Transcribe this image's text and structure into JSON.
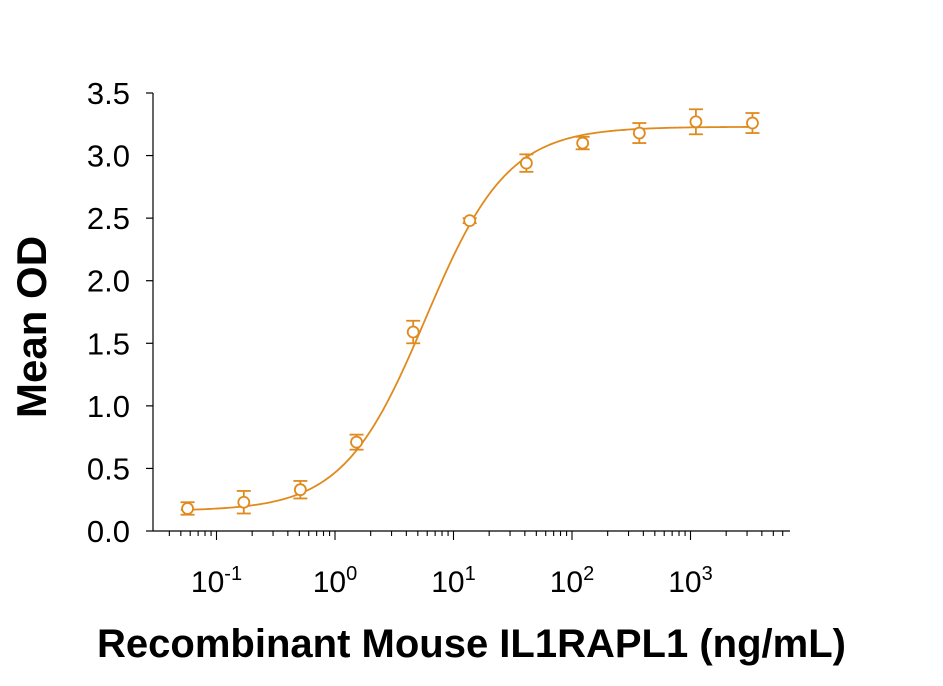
{
  "chart_data": {
    "type": "scatter",
    "title": "",
    "xlabel": "Recombinant Mouse IL1RAPL1 (ng/mL)",
    "ylabel": "Mean OD",
    "x_scale": "log",
    "x_ticks": [
      0.1,
      1,
      10,
      100,
      1000
    ],
    "x_tick_labels": [
      {
        "base": "10",
        "exp": "-1"
      },
      {
        "base": "10",
        "exp": "0"
      },
      {
        "base": "10",
        "exp": "1"
      },
      {
        "base": "10",
        "exp": "2"
      },
      {
        "base": "10",
        "exp": "3"
      }
    ],
    "xlim": [
      0.04,
      6000
    ],
    "ylim": [
      0,
      3.5
    ],
    "y_ticks": [
      0.0,
      0.5,
      1.0,
      1.5,
      2.0,
      2.5,
      3.0,
      3.5
    ],
    "y_tick_labels": [
      "0.0",
      "0.5",
      "1.0",
      "1.5",
      "2.0",
      "2.5",
      "3.0",
      "3.5"
    ],
    "grid": false,
    "color": "#E08A1E",
    "series": [
      {
        "x": [
          0.057,
          0.17,
          0.51,
          1.52,
          4.57,
          13.7,
          41.2,
          123,
          370,
          1111,
          3333
        ],
        "y": [
          0.18,
          0.23,
          0.33,
          0.71,
          1.59,
          2.48,
          2.94,
          3.1,
          3.18,
          3.27,
          3.26
        ],
        "err": [
          0.05,
          0.09,
          0.07,
          0.06,
          0.09,
          0.02,
          0.07,
          0.05,
          0.08,
          0.1,
          0.08
        ]
      }
    ],
    "fit": {
      "type": "4PL",
      "bottom": 0.16,
      "top": 3.23,
      "ec50": 5.8,
      "hill": 1.25
    }
  }
}
